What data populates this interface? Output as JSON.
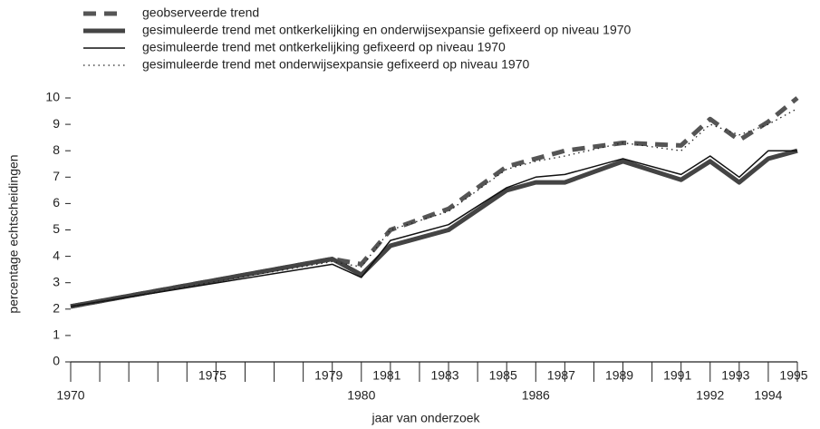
{
  "chart_data": {
    "type": "line",
    "legend": "top-left",
    "x_label": "jaar van onderzoek",
    "y_label": "percentage echtscheidingen",
    "x": [
      1970,
      1979,
      1980,
      1981,
      1983,
      1985,
      1986,
      1987,
      1989,
      1991,
      1992,
      1993,
      1994,
      1995
    ],
    "series": [
      {
        "name": "geobserveerde trend",
        "color": "#555555",
        "style": "dashed",
        "values": [
          2.1,
          3.9,
          3.7,
          5.0,
          5.8,
          7.4,
          7.7,
          8.0,
          8.3,
          8.2,
          9.2,
          8.4,
          9.1,
          10.0
        ]
      },
      {
        "name": "gesimuleerde trend met ontkerkelijking en onderwijsexpansie gefixeerd op niveau 1970",
        "color": "#444444",
        "style": "thick",
        "values": [
          2.1,
          3.9,
          3.3,
          4.4,
          5.0,
          6.5,
          6.8,
          6.8,
          7.6,
          6.9,
          7.6,
          6.8,
          7.7,
          8.0
        ]
      },
      {
        "name": "gesimuleerde trend met ontkerkelijking gefixeerd op niveau 1970",
        "color": "#111111",
        "style": "thin",
        "values": [
          2.1,
          3.7,
          3.2,
          4.6,
          5.2,
          6.6,
          7.0,
          7.1,
          7.7,
          7.1,
          7.8,
          7.0,
          8.0,
          8.0
        ]
      },
      {
        "name": "gesimuleerde trend met onderwijsexpansie gefixeerd op niveau 1970",
        "color": "#222222",
        "style": "dotted",
        "values": [
          2.1,
          3.8,
          3.6,
          5.0,
          5.7,
          7.3,
          7.6,
          7.8,
          8.3,
          8.0,
          9.0,
          8.6,
          9.0,
          9.6
        ]
      }
    ],
    "xlim": [
      1970,
      1995
    ],
    "xticks": [
      1975,
      1979,
      1981,
      1983,
      1985,
      1987,
      1989,
      1991,
      1993,
      1995
    ],
    "xticks_second_row": [
      1970,
      1980,
      1986,
      1992,
      1994
    ],
    "xticks_minor": [
      1971,
      1972,
      1973,
      1974,
      1976,
      1977,
      1978,
      1982,
      1984,
      1988,
      1990
    ],
    "ylim": [
      0,
      10
    ],
    "yticks": [
      0,
      1,
      2,
      3,
      4,
      5,
      6,
      7,
      8,
      9,
      10
    ]
  }
}
